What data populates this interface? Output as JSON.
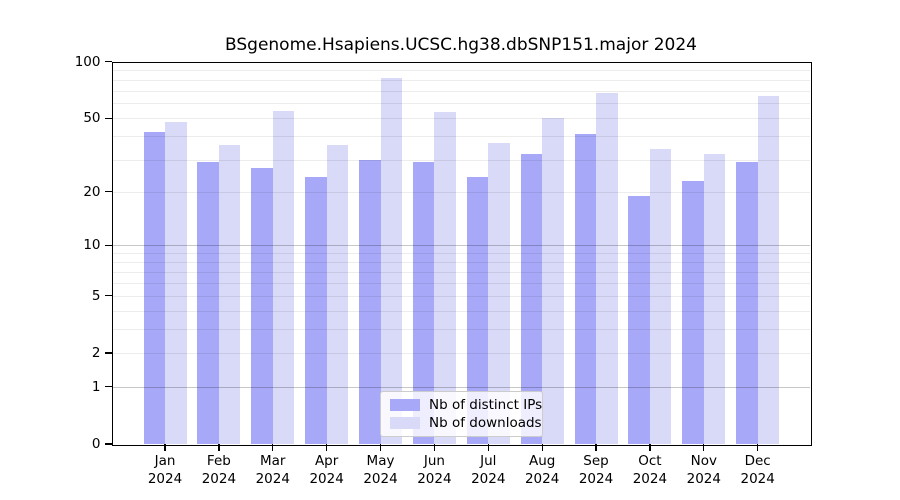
{
  "chart_data": {
    "type": "bar",
    "title": "BSgenome.Hsapiens.UCSC.hg38.dbSNP151.major 2024",
    "months": [
      "Jan",
      "Feb",
      "Mar",
      "Apr",
      "May",
      "Jun",
      "Jul",
      "Aug",
      "Sep",
      "Oct",
      "Nov",
      "Dec"
    ],
    "year_label": "2024",
    "categories": [
      "Jan 2024",
      "Feb 2024",
      "Mar 2024",
      "Apr 2024",
      "May 2024",
      "Jun 2024",
      "Jul 2024",
      "Aug 2024",
      "Sep 2024",
      "Oct 2024",
      "Nov 2024",
      "Dec 2024"
    ],
    "series": [
      {
        "name": "Nb of distinct IPs",
        "color": "#a8a8f8",
        "values": [
          42,
          29,
          27,
          24,
          30,
          29,
          24,
          32,
          41,
          19,
          23,
          29
        ]
      },
      {
        "name": "Nb of downloads",
        "color": "#d9d9f8",
        "values": [
          48,
          36,
          55,
          36,
          82,
          54,
          37,
          50,
          68,
          34,
          32,
          66
        ]
      }
    ],
    "yscale": "log1p",
    "ylim": [
      0,
      100
    ],
    "yticks": [
      0,
      1,
      2,
      5,
      10,
      20,
      50,
      100
    ],
    "grid": {
      "major": [
        1,
        10
      ],
      "minor": [
        2,
        3,
        4,
        5,
        6,
        7,
        8,
        9,
        20,
        30,
        40,
        50,
        60,
        70,
        80,
        90
      ]
    },
    "legend_position": "bottom-center",
    "axis_color": "#000000",
    "text_color": "#000000",
    "background": "#ffffff"
  }
}
